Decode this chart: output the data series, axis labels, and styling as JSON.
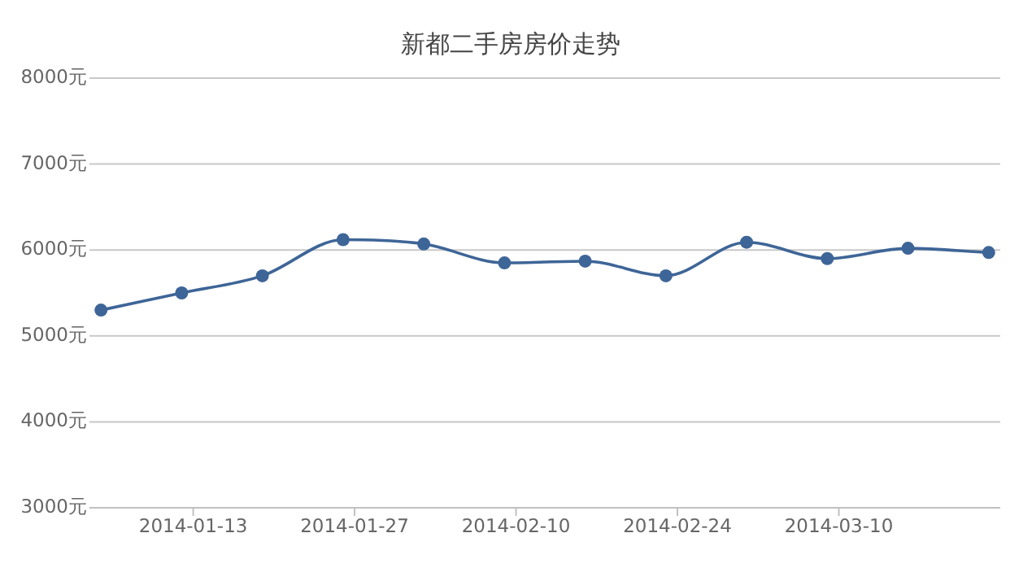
{
  "chart_data": {
    "type": "line",
    "title": "新都二手房房价走势",
    "x": [
      "2014-01-05",
      "2014-01-12",
      "2014-01-19",
      "2014-01-26",
      "2014-02-02",
      "2014-02-09",
      "2014-02-16",
      "2014-02-23",
      "2014-03-02",
      "2014-03-09",
      "2014-03-16",
      "2014-03-23"
    ],
    "series": [
      {
        "color": "#3e6597",
        "values": [
          5300,
          5500,
          5700,
          6120,
          6070,
          5850,
          5870,
          5700,
          6090,
          5900,
          6020,
          5970
        ]
      }
    ],
    "xlim": [
      "2014-01-04",
      "2014-03-24"
    ],
    "xticks": [
      "2014-01-13",
      "2014-01-27",
      "2014-02-10",
      "2014-02-24",
      "2014-03-10"
    ],
    "ylim": [
      3000,
      8000
    ],
    "yticks": [
      {
        "value": 3000,
        "label": "3000元"
      },
      {
        "value": 4000,
        "label": "4000元"
      },
      {
        "value": 5000,
        "label": "5000元"
      },
      {
        "value": 6000,
        "label": "6000元"
      },
      {
        "value": 7000,
        "label": "7000元"
      },
      {
        "value": 8000,
        "label": "8000元"
      }
    ],
    "grid": "y",
    "marker": "circle",
    "line_style": "solid"
  }
}
